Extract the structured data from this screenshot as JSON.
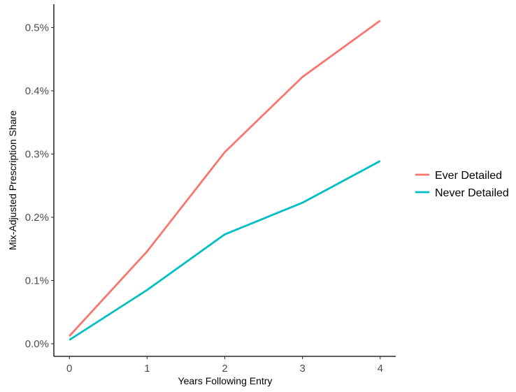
{
  "chart_data": {
    "type": "line",
    "title": "",
    "xlabel": "Years Following Entry",
    "ylabel": "Mix-Adjusted Prescription Share",
    "x": [
      0,
      1,
      2,
      3,
      4
    ],
    "x_tick_labels": [
      "0",
      "1",
      "2",
      "3",
      "4"
    ],
    "xlim": [
      -0.2,
      4.2
    ],
    "ylim": [
      -0.0002,
      0.00537
    ],
    "y_ticks": [
      0.0,
      0.001,
      0.002,
      0.003,
      0.004,
      0.005
    ],
    "y_tick_labels": [
      "0.0%",
      "0.1%",
      "0.2%",
      "0.3%",
      "0.4%",
      "0.5%"
    ],
    "grid": false,
    "legend_position": "right",
    "series": [
      {
        "name": "Ever Detailed",
        "color": "#F8766D",
        "values": [
          0.00012,
          0.00146,
          0.00303,
          0.00422,
          0.00511
        ]
      },
      {
        "name": "Never Detailed",
        "color": "#00BFC4",
        "values": [
          6e-05,
          0.00085,
          0.00173,
          0.00223,
          0.00289
        ]
      }
    ]
  }
}
